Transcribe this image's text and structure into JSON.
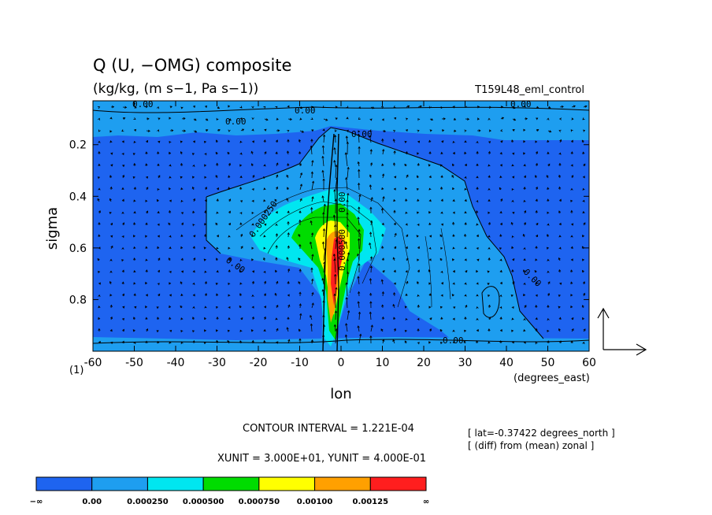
{
  "chart_data": {
    "type": "heatmap",
    "title": "Q (U, −OMG) composite",
    "subtitle": "(kg/kg, (m s−1, Pa s−1))",
    "dataset_label": "T159L48_eml_control",
    "xlabel": "lon",
    "ylabel": "sigma",
    "x_unit_label": "(degrees_east)",
    "y_extra_label": "(1)",
    "xlim": [
      -60,
      60
    ],
    "ylim": [
      1.0,
      0.03
    ],
    "x_ticks": [
      -60,
      -50,
      -40,
      -30,
      -20,
      -10,
      0,
      10,
      20,
      30,
      40,
      50,
      60
    ],
    "y_ticks": [
      0.2,
      0.4,
      0.6,
      0.8
    ],
    "contour_interval_text": "CONTOUR INTERVAL = 1.221E-04",
    "unit_text": "XUNIT = 3.000E+01, YUNIT = 4.000E-01",
    "notes": [
      "[ lat=-0.37422 degrees_north ]",
      "[ (diff) from (mean) zonal ]"
    ],
    "contour_labels": [
      "0.00",
      "0.00",
      "0.00",
      "0.00",
      "0.000250",
      "0.00",
      "0.00",
      "0.00",
      "0.00",
      "0.000500",
      "0.00"
    ],
    "color_levels": [
      {
        "label": "−∞",
        "color": "#1e64f0"
      },
      {
        "label": "0.00",
        "color": "#1e9ef0"
      },
      {
        "label": "0.000250",
        "color": "#00e6f0"
      },
      {
        "label": "0.000500",
        "color": "#00dc00"
      },
      {
        "label": "0.000750",
        "color": "#ffff00"
      },
      {
        "label": "0.00100",
        "color": "#ffa000"
      },
      {
        "label": "0.00125",
        "color": "#ff1e1e"
      }
    ],
    "colorbar_end_label": "∞",
    "grid": false,
    "vector_overlay": true
  }
}
